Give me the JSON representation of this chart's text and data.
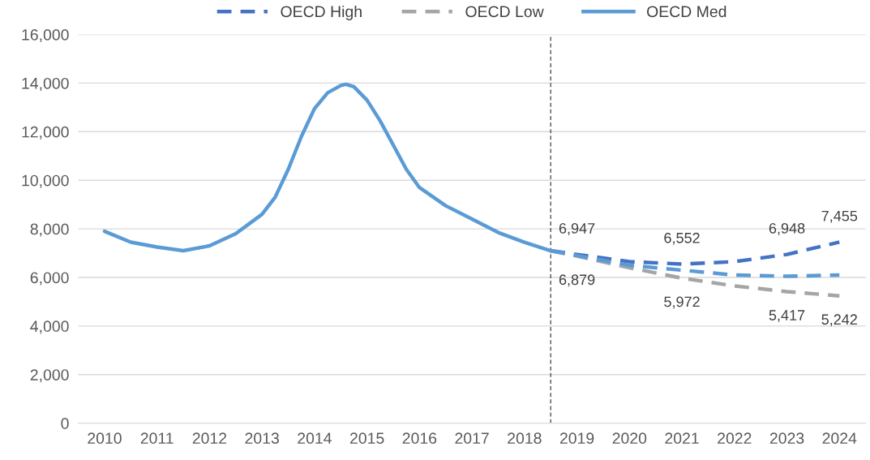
{
  "chart_data": {
    "type": "line",
    "xlim": [
      2009.5,
      2024.5
    ],
    "xticks": [
      2010,
      2011,
      2012,
      2013,
      2014,
      2015,
      2016,
      2017,
      2018,
      2019,
      2020,
      2021,
      2022,
      2023,
      2024
    ],
    "ylim": [
      0,
      16000
    ],
    "yticks": [
      {
        "value": 0,
        "label": "0"
      },
      {
        "value": 2000,
        "label": "2,000"
      },
      {
        "value": 4000,
        "label": "4,000"
      },
      {
        "value": 6000,
        "label": "6,000"
      },
      {
        "value": 8000,
        "label": "8,000"
      },
      {
        "value": 10000,
        "label": "10,000"
      },
      {
        "value": 12000,
        "label": "12,000"
      },
      {
        "value": 14000,
        "label": "14,000"
      },
      {
        "value": 16000,
        "label": "16,000"
      }
    ],
    "grid": "y",
    "legend": "top",
    "marker": "none",
    "ref_lines": [
      {
        "axis": "x",
        "value": 2018.5,
        "label": null,
        "color": "#404040",
        "line_style": "dashed"
      }
    ],
    "series": [
      {
        "name": "OECD High",
        "color": "#4472c4",
        "line_style": "dashed",
        "x": [
          2018.5,
          2019,
          2020,
          2021,
          2022,
          2023,
          2024
        ],
        "values": [
          7100,
          6947,
          6650,
          6552,
          6650,
          6948,
          7455
        ],
        "value_labels": [
          null,
          "6,947",
          null,
          "6,552",
          null,
          "6,948",
          "7,455"
        ]
      },
      {
        "name": "OECD Low",
        "color": "#a5a5a5",
        "line_style": "dashed",
        "x": [
          2018.5,
          2019,
          2020,
          2021,
          2022,
          2023,
          2024
        ],
        "values": [
          7100,
          6879,
          6400,
          5972,
          5650,
          5417,
          5242
        ],
        "value_labels": [
          null,
          "6,879",
          null,
          "5,972",
          null,
          "5,417",
          "5,242"
        ]
      },
      {
        "name": "OECD Med",
        "color": "#5b9bd5",
        "line_style": "solid",
        "x": [
          2010,
          2010.5,
          2011,
          2011.5,
          2012,
          2012.5,
          2013,
          2013.25,
          2013.5,
          2013.75,
          2014,
          2014.25,
          2014.5,
          2014.6,
          2014.75,
          2015,
          2015.25,
          2015.5,
          2015.75,
          2016,
          2016.5,
          2017,
          2017.5,
          2018,
          2018.5
        ],
        "values": [
          7900,
          7450,
          7250,
          7100,
          7300,
          7800,
          8600,
          9300,
          10450,
          11800,
          12950,
          13600,
          13900,
          13950,
          13850,
          13300,
          12450,
          11450,
          10450,
          9700,
          8950,
          8400,
          7850,
          7450,
          7100
        ]
      },
      {
        "color": "#5b9bd5",
        "line_style": "dashed",
        "x": [
          2018.5,
          2019,
          2020,
          2021,
          2022,
          2023,
          2024
        ],
        "values": [
          7100,
          6900,
          6500,
          6300,
          6100,
          6050,
          6100
        ]
      }
    ]
  }
}
